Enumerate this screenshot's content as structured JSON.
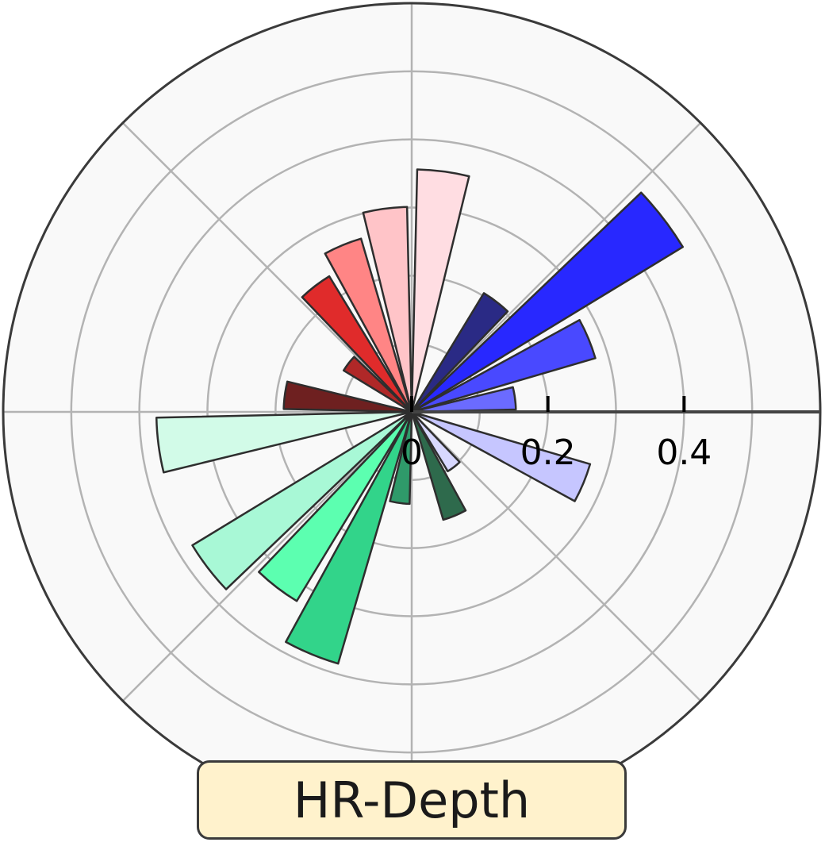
{
  "chart_data": {
    "type": "polar-bar",
    "title": "HR-Depth",
    "r_max": 0.6,
    "r_ticks": [
      0,
      0.2,
      0.4
    ],
    "r_tick_labels": [
      "0",
      "0.2",
      "0.4"
    ],
    "grid": true,
    "colors": {
      "background": "#f9f9f9",
      "grid": "#b3b3b3",
      "title_box": "#fff2cc",
      "bar_edge": "#2e2e2e"
    },
    "bars": [
      {
        "angle_deg": 7.5,
        "value": 0.153,
        "color": "#6b6bff"
      },
      {
        "angle_deg": 22.5,
        "value": 0.281,
        "color": "#4949ff"
      },
      {
        "angle_deg": 37.5,
        "value": 0.466,
        "color": "#2828ff"
      },
      {
        "angle_deg": 52.5,
        "value": 0.204,
        "color": "#2a2a85"
      },
      {
        "angle_deg": 82.5,
        "value": 0.356,
        "color": "#ffdde2"
      },
      {
        "angle_deg": 97.5,
        "value": 0.301,
        "color": "#ffc4c8"
      },
      {
        "angle_deg": 112.5,
        "value": 0.265,
        "color": "#ff8585"
      },
      {
        "angle_deg": 127.5,
        "value": 0.233,
        "color": "#e02b2b"
      },
      {
        "angle_deg": 142.5,
        "value": 0.117,
        "color": "#b02828"
      },
      {
        "angle_deg": 172.5,
        "value": 0.188,
        "color": "#6e2020"
      },
      {
        "angle_deg": 187.5,
        "value": 0.375,
        "color": "#d2fbe8"
      },
      {
        "angle_deg": 217.5,
        "value": 0.377,
        "color": "#a8f8d6"
      },
      {
        "angle_deg": 232.5,
        "value": 0.325,
        "color": "#5cffb0"
      },
      {
        "angle_deg": 247.5,
        "value": 0.385,
        "color": "#32d48a"
      },
      {
        "angle_deg": 262.5,
        "value": 0.135,
        "color": "#2f9a6a"
      },
      {
        "angle_deg": 292.5,
        "value": 0.165,
        "color": "#2e6a4c"
      },
      {
        "angle_deg": 307.5,
        "value": 0.102,
        "color": "#d8d8ff"
      },
      {
        "angle_deg": 337.5,
        "value": 0.273,
        "color": "#c6c6ff"
      }
    ]
  }
}
